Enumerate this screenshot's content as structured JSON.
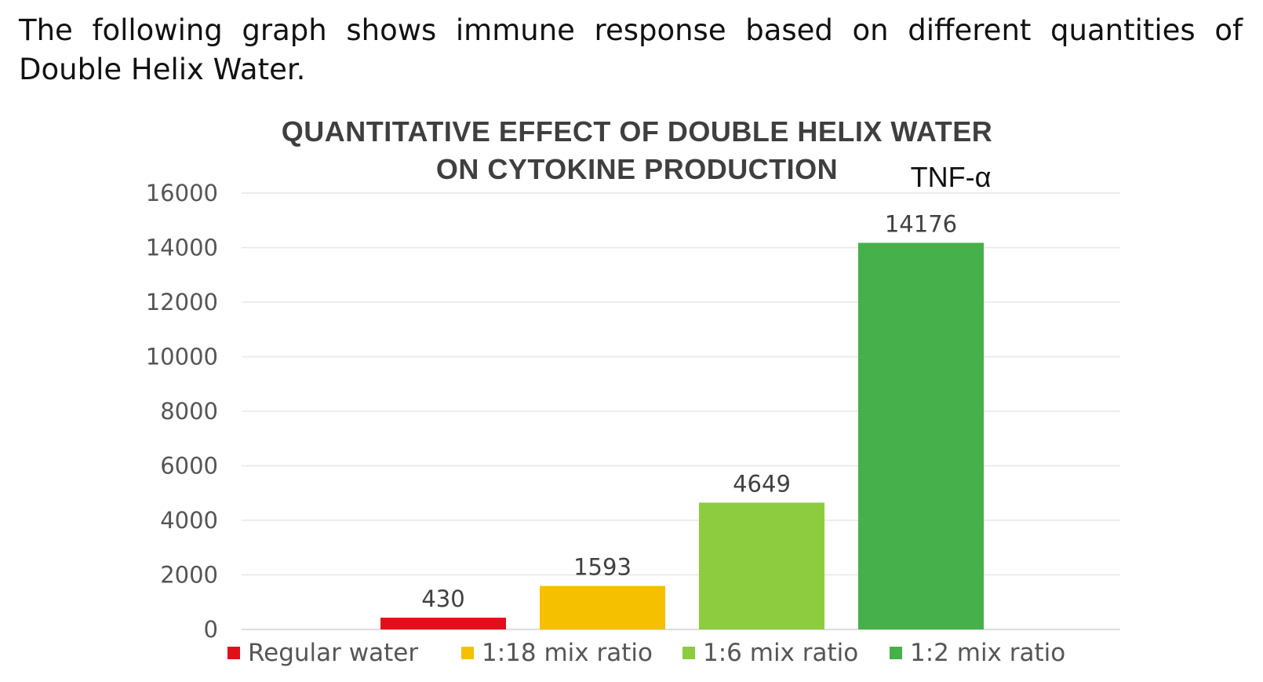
{
  "intro_text": "The following graph shows immune response based on different quantities of Double Helix Water.",
  "chart_data": {
    "type": "bar",
    "title_lines": [
      "QUANTITATIVE EFFECT OF DOUBLE HELIX WATER",
      "ON CYTOKINE PRODUCTION"
    ],
    "annotation": "TNF-α",
    "categories": [
      "Regular water",
      "1:18 mix ratio",
      "1:6 mix ratio",
      "1:2 mix ratio"
    ],
    "values": [
      430,
      1593,
      4649,
      14176
    ],
    "data_labels": [
      "430",
      "1593",
      "4649",
      "14176"
    ],
    "colors": [
      "#e0101a",
      "#f5c000",
      "#8ccc3e",
      "#46b04a"
    ],
    "ylim": [
      0,
      16000
    ],
    "yticks": [
      0,
      2000,
      4000,
      6000,
      8000,
      10000,
      12000,
      14000,
      16000
    ],
    "ytick_labels": [
      "0",
      "2000",
      "4000",
      "6000",
      "8000",
      "10000",
      "12000",
      "14000",
      "16000"
    ],
    "grid": true,
    "legend_placement": "bottom",
    "xlabel": "",
    "ylabel": ""
  }
}
